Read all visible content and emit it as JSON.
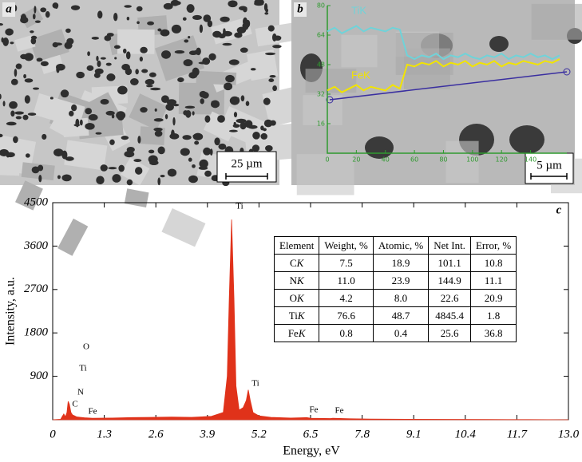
{
  "figure": {
    "panel_a": {
      "label": "a",
      "scale_bar": "25 µm"
    }
  },
  "chart_data": [
    {
      "type": "line",
      "panel_label": "b",
      "scale_bar": "5 µm",
      "x": [
        0,
        5,
        10,
        15,
        20,
        25,
        30,
        35,
        40,
        45,
        50,
        55,
        60,
        65,
        70,
        75,
        80,
        85,
        90,
        95,
        100,
        105,
        110,
        115,
        120,
        125,
        130,
        135,
        140,
        145,
        150,
        155,
        160
      ],
      "series": [
        {
          "name": "TiK",
          "color": "#6fd3d9",
          "values": [
            66,
            68,
            65,
            67,
            69,
            66,
            68,
            67,
            66,
            68,
            67,
            53,
            51,
            53,
            52,
            54,
            51,
            53,
            52,
            54,
            52,
            51,
            53,
            52,
            54,
            51,
            53,
            52,
            54,
            52,
            53,
            51,
            53
          ]
        },
        {
          "name": "FeK",
          "color": "#f2e400",
          "values": [
            34,
            36,
            33,
            35,
            37,
            34,
            36,
            35,
            34,
            37,
            35,
            48,
            47,
            49,
            48,
            50,
            47,
            49,
            48,
            50,
            47,
            49,
            48,
            50,
            47,
            49,
            48,
            50,
            49,
            48,
            50,
            49,
            51
          ]
        }
      ],
      "xlim": [
        0,
        165
      ],
      "ylim": [
        0,
        80
      ],
      "xticks": [
        0,
        20,
        40,
        60,
        80,
        100,
        120,
        140
      ],
      "yticks": [
        16,
        32,
        48,
        64,
        80
      ]
    },
    {
      "type": "area",
      "panel_label": "c",
      "color": "#e0321a",
      "xlabel": "Energy, eV",
      "ylabel": "Intensity, a.u.",
      "x": [
        0,
        0.2,
        0.25,
        0.28,
        0.32,
        0.36,
        0.39,
        0.42,
        0.46,
        0.5,
        0.55,
        0.6,
        0.7,
        0.8,
        1.0,
        1.5,
        2,
        2.5,
        3,
        3.5,
        4,
        4.3,
        4.4,
        4.45,
        4.51,
        4.57,
        4.62,
        4.7,
        4.8,
        4.88,
        4.93,
        4.98,
        5.05,
        5.2,
        5.5,
        6,
        6.4,
        6.5,
        7,
        7.06,
        7.5,
        8,
        9,
        10,
        11,
        12,
        13
      ],
      "values": [
        0,
        10,
        80,
        120,
        60,
        150,
        380,
        320,
        150,
        100,
        80,
        60,
        50,
        40,
        30,
        35,
        45,
        50,
        55,
        50,
        70,
        150,
        900,
        2500,
        4150,
        2500,
        700,
        200,
        250,
        400,
        620,
        400,
        150,
        80,
        50,
        35,
        45,
        30,
        25,
        30,
        20,
        15,
        10,
        8,
        5,
        3,
        0
      ],
      "xlim": [
        0,
        13
      ],
      "ylim": [
        0,
        4500
      ],
      "xticks": [
        0,
        1.3,
        2.6,
        3.9,
        5.2,
        6.5,
        7.8,
        9.1,
        10.4,
        11.7,
        {
          "value": 13,
          "label": "13.0"
        }
      ],
      "yticks": [
        900,
        1800,
        2700,
        3600,
        4500
      ],
      "annotations": [
        "C",
        "N",
        "Ti",
        "O",
        "Fe",
        "Ti",
        "Ti",
        "Fe",
        "Fe"
      ],
      "table": {
        "header": [
          "Element",
          "Weight, %",
          "Atomic, %",
          "Net Int.",
          "Error, %"
        ],
        "rows": [
          [
            {
              "element": "C",
              "line": "K"
            },
            "7.5",
            "18.9",
            "101.1",
            "10.8"
          ],
          [
            {
              "element": "N",
              "line": "K"
            },
            "11.0",
            "23.9",
            "144.9",
            "11.1"
          ],
          [
            {
              "element": "O",
              "line": "K"
            },
            "4.2",
            "8.0",
            "22.6",
            "20.9"
          ],
          [
            {
              "element": "Ti",
              "line": "K"
            },
            "76.6",
            "48.7",
            "4845.4",
            "1.8"
          ],
          [
            {
              "element": "Fe",
              "line": "K"
            },
            "0.8",
            "0.4",
            "25.6",
            "36.8"
          ]
        ]
      }
    }
  ]
}
